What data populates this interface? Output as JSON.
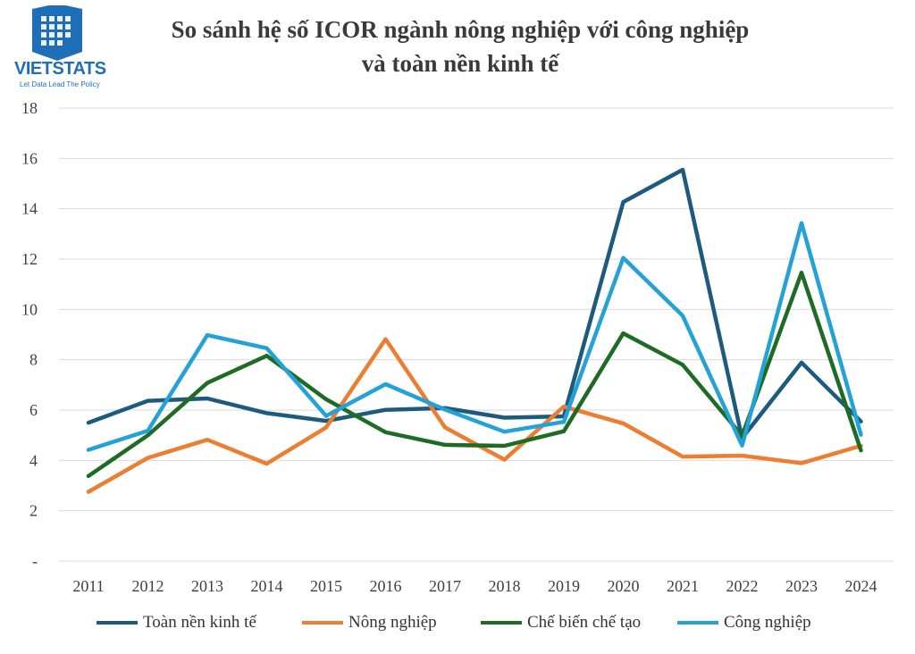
{
  "logo": {
    "name": "VIETSTATS",
    "tagline": "Let Data Lead The Policy",
    "color": "#1f6fb8"
  },
  "title": {
    "line1": "So sánh hệ số ICOR ngành nông nghiệp với công nghiệp",
    "line2": "và toàn nền kinh tế"
  },
  "chart_data": {
    "type": "line",
    "x": [
      "2011",
      "2012",
      "2013",
      "2014",
      "2015",
      "2016",
      "2017",
      "2018",
      "2019",
      "2020",
      "2021",
      "2022",
      "2023",
      "2024"
    ],
    "ylim": [
      0,
      18
    ],
    "yticks": [
      0,
      2,
      4,
      6,
      8,
      10,
      12,
      14,
      16,
      18
    ],
    "ytick_labels": [
      "-",
      "2",
      "4",
      "6",
      "8",
      "10",
      "12",
      "14",
      "16",
      "18"
    ],
    "grid": true,
    "legend_position": "bottom",
    "series": [
      {
        "name": "Toàn nền kinh tế",
        "color": "#1d5b7e",
        "values": [
          5.5,
          6.37,
          6.46,
          5.88,
          5.57,
          6.01,
          6.08,
          5.7,
          5.75,
          14.27,
          15.55,
          4.89,
          7.89,
          5.55
        ]
      },
      {
        "name": "Nông nghiệp",
        "color": "#ed7d31",
        "values": [
          2.75,
          4.1,
          4.82,
          3.87,
          5.31,
          8.82,
          5.31,
          4.03,
          6.14,
          5.47,
          4.15,
          4.19,
          3.89,
          4.58
        ]
      },
      {
        "name": "Chế biến chế tạo",
        "color": "#1e6b24",
        "values": [
          3.38,
          5.0,
          7.08,
          8.16,
          6.43,
          5.12,
          4.62,
          4.58,
          5.16,
          9.05,
          7.8,
          4.98,
          11.46,
          4.4
        ]
      },
      {
        "name": "Công nghiệp",
        "color": "#24a2d8",
        "values": [
          4.42,
          5.18,
          8.98,
          8.46,
          5.77,
          7.03,
          6.02,
          5.14,
          5.53,
          12.05,
          9.75,
          4.59,
          13.43,
          5.02
        ]
      }
    ]
  }
}
